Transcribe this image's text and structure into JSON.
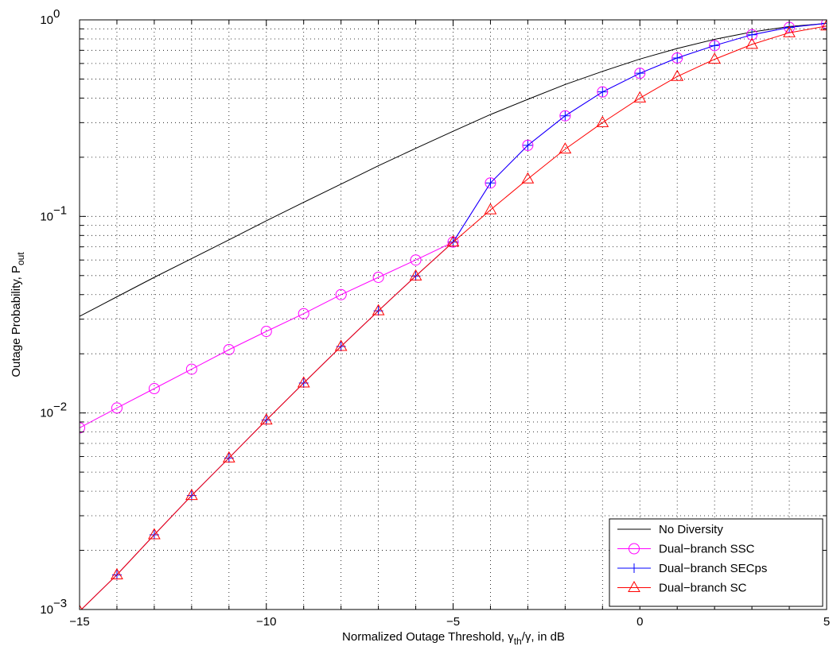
{
  "chart_data": {
    "type": "line",
    "title": "",
    "xlabel": {
      "main": "Normalized Outage Threshold, ",
      "sym1": "γ",
      "sub1": "th",
      "sym2": "/γ",
      "rest": ", in dB"
    },
    "ylabel": {
      "main": "Outage Probability, P",
      "sub": "out"
    },
    "xlim": [
      -15,
      5
    ],
    "ylim": [
      0.001,
      1
    ],
    "yscale": "log",
    "grid": true,
    "legend_position": "bottom-right",
    "x_ticks": [
      -15,
      -10,
      -5,
      0,
      5
    ],
    "x_tick_labels": [
      "−15",
      "−10",
      "−5",
      "0",
      "5"
    ],
    "y_ticks": [
      {
        "value": 0.001,
        "base": "10",
        "exp": "−3"
      },
      {
        "value": 0.01,
        "base": "10",
        "exp": "−2"
      },
      {
        "value": 0.1,
        "base": "10",
        "exp": "−1"
      },
      {
        "value": 1,
        "base": "10",
        "exp": "0"
      }
    ],
    "series": [
      {
        "name": "No Diversity",
        "color": "#000000",
        "marker": "none",
        "x": [
          -15,
          -14,
          -13,
          -12,
          -11,
          -10,
          -9,
          -8,
          -7,
          -6,
          -5,
          -4,
          -3,
          -2,
          -1,
          0,
          1,
          2,
          3,
          4,
          5
        ],
        "y": [
          0.031,
          0.039,
          0.049,
          0.061,
          0.076,
          0.095,
          0.118,
          0.146,
          0.181,
          0.222,
          0.271,
          0.33,
          0.394,
          0.469,
          0.547,
          0.632,
          0.715,
          0.796,
          0.867,
          0.925,
          0.96
        ]
      },
      {
        "name": "Dual−branch SSC",
        "color": "#ff00ff",
        "marker": "circle",
        "x": [
          -15,
          -14,
          -13,
          -12,
          -11,
          -10,
          -9,
          -8,
          -7,
          -6,
          -5,
          -4,
          -3,
          -2,
          -1,
          0,
          1,
          2,
          3,
          4,
          5
        ],
        "y": [
          0.0084,
          0.0106,
          0.0133,
          0.0167,
          0.021,
          0.026,
          0.032,
          0.04,
          0.049,
          0.06,
          0.074,
          0.148,
          0.23,
          0.325,
          0.43,
          0.535,
          0.64,
          0.74,
          0.84,
          0.915,
          0.96
        ]
      },
      {
        "name": "Dual−branch SECps",
        "color": "#0000ff",
        "marker": "plus",
        "x": [
          -15,
          -14,
          -13,
          -12,
          -11,
          -10,
          -9,
          -8,
          -7,
          -6,
          -5,
          -4,
          -3,
          -2,
          -1,
          0,
          1,
          2,
          3,
          4,
          5
        ],
        "y": [
          0.00098,
          0.0015,
          0.0024,
          0.0038,
          0.0059,
          0.0092,
          0.0142,
          0.0218,
          0.0331,
          0.0497,
          0.074,
          0.148,
          0.23,
          0.325,
          0.43,
          0.535,
          0.64,
          0.74,
          0.84,
          0.915,
          0.96
        ]
      },
      {
        "name": "Dual−branch SC",
        "color": "#ff0000",
        "marker": "triangle",
        "x": [
          -15,
          -14,
          -13,
          -12,
          -11,
          -10,
          -9,
          -8,
          -7,
          -6,
          -5,
          -4,
          -3,
          -2,
          -1,
          0,
          1,
          2,
          3,
          4,
          5
        ],
        "y": [
          0.00098,
          0.0015,
          0.0024,
          0.0038,
          0.0059,
          0.0092,
          0.0142,
          0.0218,
          0.0331,
          0.0497,
          0.074,
          0.108,
          0.155,
          0.22,
          0.3,
          0.4,
          0.515,
          0.63,
          0.75,
          0.86,
          0.93
        ]
      }
    ]
  }
}
